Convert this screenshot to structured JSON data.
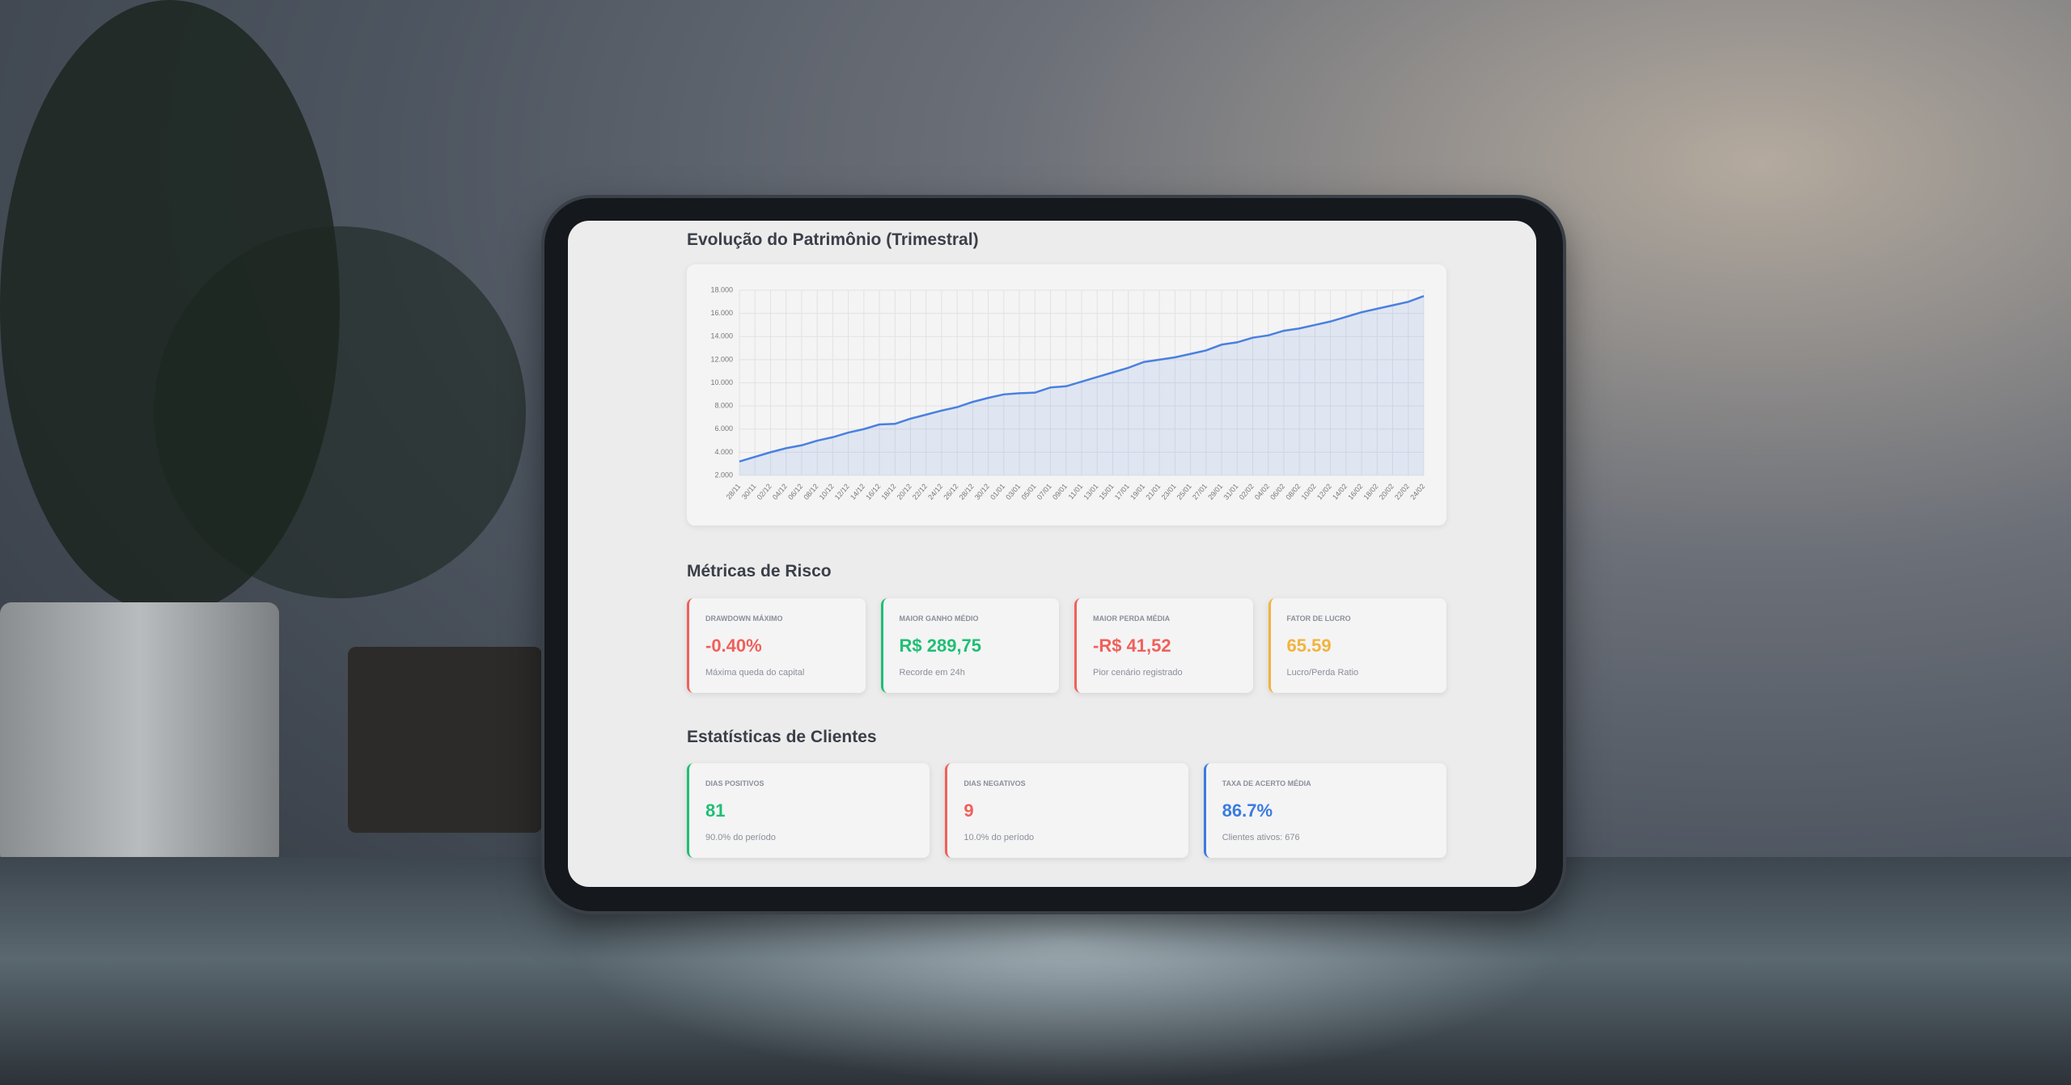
{
  "chart_data": {
    "type": "line",
    "title": "Evolução do Patrimônio (Trimestral)",
    "categories": [
      "28/11",
      "30/11",
      "02/12",
      "04/12",
      "06/12",
      "08/12",
      "10/12",
      "12/12",
      "14/12",
      "16/12",
      "18/12",
      "20/12",
      "22/12",
      "24/12",
      "26/12",
      "28/12",
      "30/12",
      "01/01",
      "03/01",
      "05/01",
      "07/01",
      "09/01",
      "11/01",
      "13/01",
      "15/01",
      "17/01",
      "19/01",
      "21/01",
      "23/01",
      "25/01",
      "27/01",
      "29/01",
      "31/01",
      "02/02",
      "04/02",
      "06/02",
      "08/02",
      "10/02",
      "12/02",
      "14/02",
      "16/02",
      "18/02",
      "20/02",
      "22/02",
      "24/02"
    ],
    "values": [
      3200,
      3600,
      4000,
      4350,
      4600,
      5000,
      5300,
      5700,
      6000,
      6400,
      6450,
      6900,
      7250,
      7600,
      7900,
      8350,
      8700,
      9000,
      9100,
      9150,
      9600,
      9700,
      10100,
      10500,
      10900,
      11300,
      11800,
      12000,
      12200,
      12500,
      12800,
      13300,
      13500,
      13900,
      14100,
      14500,
      14700,
      15000,
      15300,
      15700,
      16100,
      16400,
      16700,
      17000,
      17500
    ],
    "color": "#4a80e0",
    "ylim": [
      2000,
      18000
    ],
    "yticks": [
      {
        "value": 2000,
        "label": "2.000"
      },
      {
        "value": 4000,
        "label": "4.000"
      },
      {
        "value": 6000,
        "label": "6.000"
      },
      {
        "value": 8000,
        "label": "8.000"
      },
      {
        "value": 10000,
        "label": "10.000"
      },
      {
        "value": 12000,
        "label": "12.000"
      },
      {
        "value": 14000,
        "label": "14.000"
      },
      {
        "value": 16000,
        "label": "16.000"
      },
      {
        "value": 18000,
        "label": "18.000"
      }
    ],
    "grid": true
  },
  "risk": {
    "title": "Métricas de Risco",
    "cards": [
      {
        "label": "DRAWDOWN MÁXIMO",
        "value": "-0.40%",
        "note": "Máxima queda do capital"
      },
      {
        "label": "MAIOR GANHO MÉDIO",
        "value": "R$ 289,75",
        "note": "Recorde em 24h"
      },
      {
        "label": "MAIOR PERDA MÉDIA",
        "value": "-R$ 41,52",
        "note": "Pior cenário registrado"
      },
      {
        "label": "FATOR DE LUCRO",
        "value": "65.59",
        "note": "Lucro/Perda Ratio"
      }
    ]
  },
  "clients": {
    "title": "Estatísticas de Clientes",
    "cards": [
      {
        "label": "DIAS POSITIVOS",
        "value": "81",
        "note": "90.0% do período"
      },
      {
        "label": "DIAS NEGATIVOS",
        "value": "9",
        "note": "10.0% do período"
      },
      {
        "label": "TAXA DE ACERTO MÉDIA",
        "value": "86.7%",
        "note": "Clientes ativos: 676"
      }
    ]
  }
}
